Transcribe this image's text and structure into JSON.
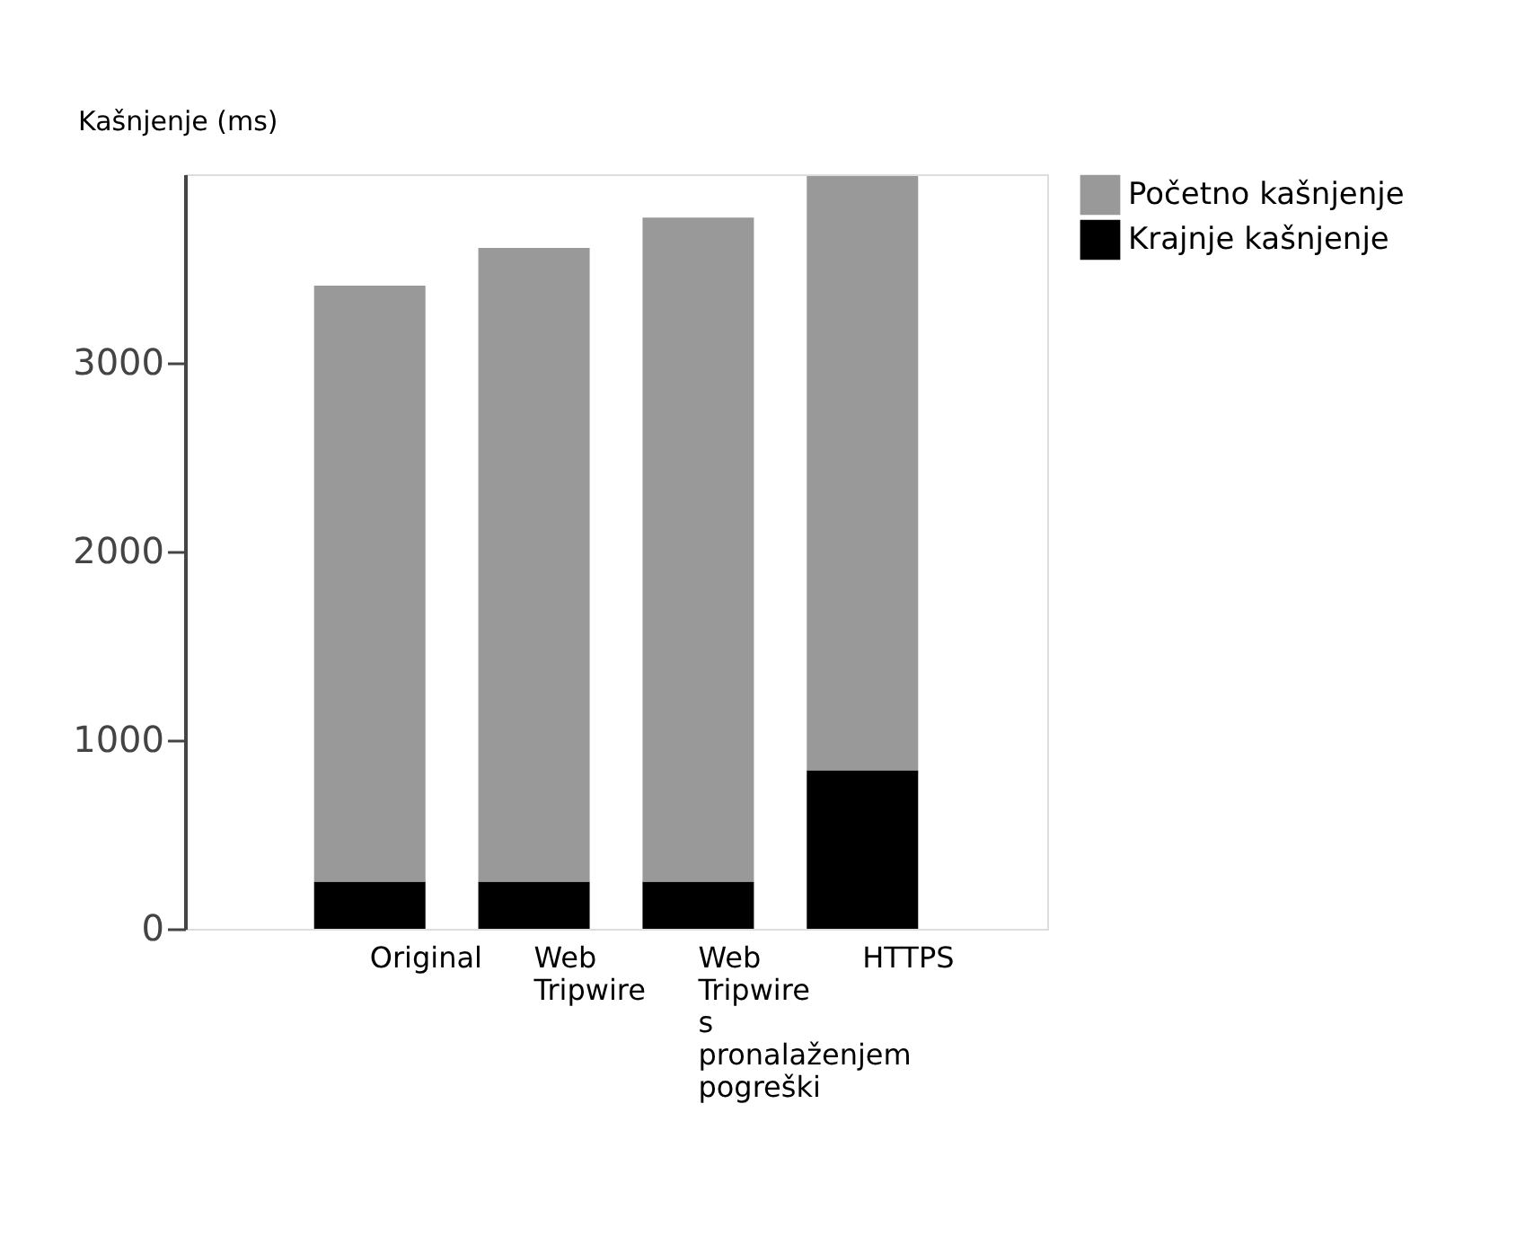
{
  "chart_data": {
    "type": "bar",
    "stacked": true,
    "ylabel": "Kašnjenje (ms)",
    "categories": [
      "Original",
      "Web Tripwire",
      "Web Tripwire s pronalaženjem pogreški",
      "HTTPS"
    ],
    "series": [
      {
        "name": "Krajnje kašnjenje",
        "color": "#000000",
        "values": [
          250,
          250,
          250,
          840
        ]
      },
      {
        "name": "Početno kašnjenje",
        "color": "#999999",
        "values": [
          3160,
          3360,
          3520,
          3150
        ]
      }
    ],
    "ylim": [
      0,
      4000
    ],
    "yticks": [
      0,
      1000,
      2000,
      3000
    ],
    "grid": false,
    "legend": "right"
  }
}
